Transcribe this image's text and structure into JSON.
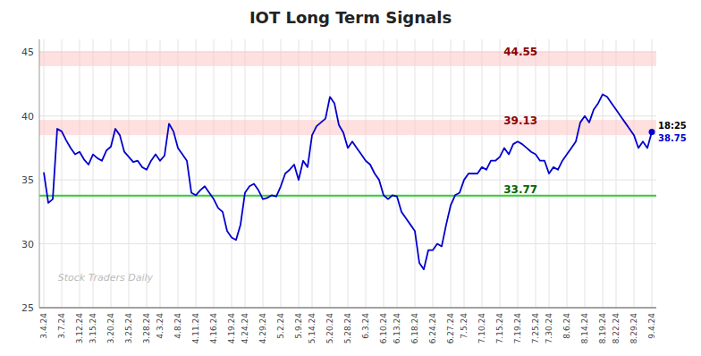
{
  "chart_data": {
    "type": "line",
    "title": "IOT Long Term Signals",
    "watermark": "Stock Traders Daily",
    "color": "#0000cc",
    "grid": true,
    "ylim": [
      25,
      46
    ],
    "yticks": [
      25,
      30,
      35,
      40,
      45
    ],
    "bands": [
      {
        "from": 43.9,
        "to": 45.1,
        "color": "#ffcccc"
      },
      {
        "from": 38.5,
        "to": 39.7,
        "color": "#ffcccc"
      }
    ],
    "reference_lines": [
      {
        "value": 33.77,
        "color": "#33cc33"
      }
    ],
    "annotations": [
      {
        "text": "44.55",
        "y": 44.55,
        "color": "darkred"
      },
      {
        "text": "39.13",
        "y": 39.13,
        "color": "darkred"
      },
      {
        "text": "33.77",
        "y": 33.77,
        "color": "darkgreen"
      }
    ],
    "end_labels": [
      {
        "text": "18:25",
        "color": "black"
      },
      {
        "text": "38.75",
        "color": "#0000cc"
      }
    ],
    "categories": [
      "3.4.24",
      null,
      null,
      null,
      "3.7.24",
      null,
      null,
      null,
      "3.12.24",
      null,
      null,
      "3.15.24",
      null,
      null,
      null,
      "3.20.24",
      null,
      null,
      null,
      "3.25.24",
      null,
      null,
      null,
      "3.28.24",
      null,
      null,
      "4.3.24",
      null,
      null,
      null,
      "4.8.24",
      null,
      null,
      null,
      "4.11.24",
      null,
      null,
      null,
      "4.16.24",
      null,
      null,
      null,
      "4.19.24",
      null,
      null,
      "4.24.24",
      null,
      null,
      null,
      "4.29.24",
      null,
      null,
      null,
      "5.2.24",
      null,
      null,
      null,
      "5.9.24",
      null,
      null,
      "5.14.24",
      null,
      null,
      null,
      "5.20.24",
      null,
      null,
      null,
      "5.28.24",
      null,
      null,
      null,
      "6.3.24",
      null,
      null,
      null,
      "6.10.24",
      null,
      null,
      "6.13.24",
      null,
      null,
      null,
      "6.18.24",
      null,
      null,
      null,
      "6.24.24",
      null,
      null,
      null,
      "6.27.24",
      null,
      null,
      "7.5.24",
      null,
      null,
      null,
      "7.10.24",
      null,
      null,
      null,
      "7.15.24",
      null,
      null,
      null,
      "7.19.24",
      null,
      null,
      null,
      "7.25.24",
      null,
      null,
      "7.30.24",
      null,
      null,
      null,
      "8.6.24",
      null,
      null,
      null,
      "8.14.24",
      null,
      null,
      null,
      "8.19.24",
      null,
      null,
      "8.22.24",
      null,
      null,
      null,
      "8.29.24",
      null,
      null,
      null,
      "9.4.24"
    ],
    "values": [
      35.6,
      33.2,
      33.5,
      39.0,
      38.8,
      38.1,
      37.5,
      37.0,
      37.2,
      36.6,
      36.2,
      37.0,
      36.7,
      36.5,
      37.3,
      37.6,
      39.0,
      38.5,
      37.2,
      36.8,
      36.4,
      36.5,
      36.0,
      35.8,
      36.5,
      37.0,
      36.5,
      36.9,
      39.4,
      38.8,
      37.5,
      37.0,
      36.5,
      34.0,
      33.8,
      34.2,
      34.5,
      34.0,
      33.5,
      32.8,
      32.5,
      31.0,
      30.5,
      30.3,
      31.5,
      34.0,
      34.5,
      34.7,
      34.2,
      33.5,
      33.6,
      33.8,
      33.7,
      34.5,
      35.5,
      35.8,
      36.2,
      35.0,
      36.5,
      36.0,
      38.5,
      39.2,
      39.5,
      39.8,
      41.5,
      41.0,
      39.3,
      38.7,
      37.5,
      38.0,
      37.5,
      37.0,
      36.5,
      36.2,
      35.5,
      35.0,
      33.8,
      33.5,
      33.8,
      33.7,
      32.5,
      32.0,
      31.5,
      31.0,
      28.5,
      28.0,
      29.5,
      29.5,
      30.0,
      29.8,
      31.5,
      33.0,
      33.8,
      34.0,
      35.0,
      35.5,
      35.5,
      35.5,
      36.0,
      35.8,
      36.5,
      36.5,
      36.8,
      37.5,
      37.0,
      37.8,
      38.0,
      37.8,
      37.5,
      37.2,
      37.0,
      36.5,
      36.5,
      35.5,
      36.0,
      35.8,
      36.5,
      37.0,
      37.5,
      38.0,
      39.5,
      40.0,
      39.5,
      40.5,
      41.0,
      41.7,
      41.5,
      41.0,
      40.5,
      40.0,
      39.5,
      39.0,
      38.5,
      37.5,
      38.0,
      37.5,
      38.75
    ]
  }
}
